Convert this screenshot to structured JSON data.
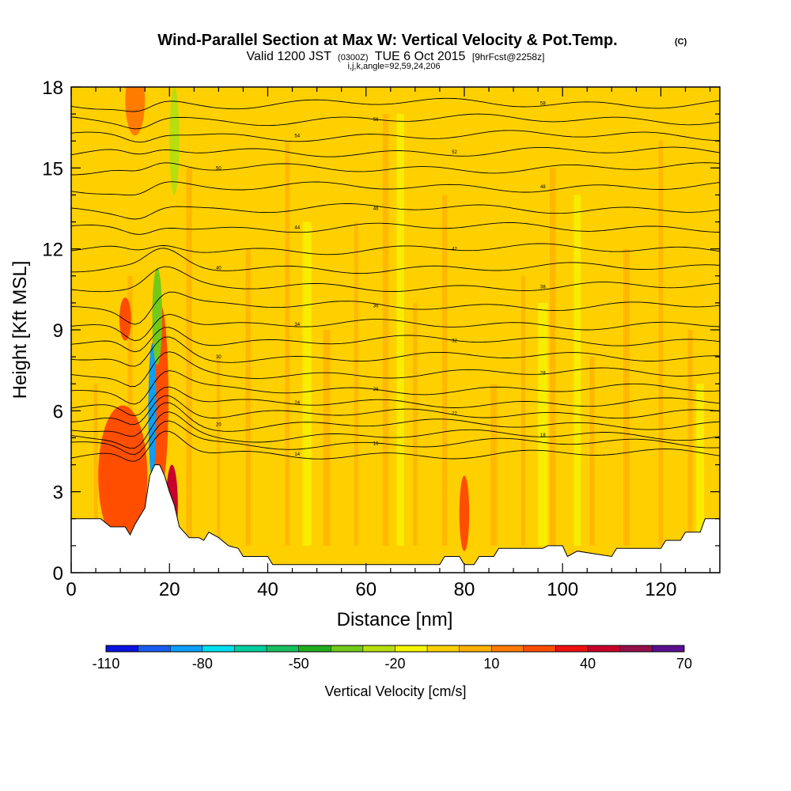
{
  "header": {
    "title": "Wind-Parallel Section at Max W: Vertical Velocity & Pot.Temp.",
    "title_mark": "(C)",
    "valid_prefix": "Valid 1200 JST",
    "valid_utc": "(0300Z)",
    "valid_date": "TUE 6 Oct 2015",
    "forecast_tag": "[9hrFcst@2258z]",
    "indices": "i,j,k,angle=92,59,24,206"
  },
  "chart_data": {
    "type": "heatmap",
    "xlabel": "Distance [nm]",
    "ylabel": "Height [Kft MSL]",
    "xlim": [
      0,
      132
    ],
    "ylim": [
      0,
      18
    ],
    "x_ticks": [
      0,
      20,
      40,
      60,
      80,
      100,
      120
    ],
    "y_ticks": [
      0,
      3,
      6,
      9,
      12,
      15,
      18
    ],
    "x_tick_labels": [
      "0",
      "20",
      "40",
      "60",
      "80",
      "100",
      "120"
    ],
    "y_tick_labels": [
      "0",
      "3",
      "6",
      "9",
      "12",
      "15",
      "18"
    ],
    "grid": false,
    "colorbar": {
      "title": "Vertical Velocity [cm/s]",
      "placement": "bottom",
      "levels": [
        -110,
        -100,
        -90,
        -80,
        -70,
        -60,
        -50,
        -40,
        -30,
        -20,
        -10,
        0,
        10,
        20,
        30,
        40,
        50,
        60,
        70
      ],
      "colors": [
        "#0a13e0",
        "#1a5cf0",
        "#0d9ef7",
        "#00e0f0",
        "#00d0a0",
        "#18c060",
        "#22ad1e",
        "#73c91a",
        "#b8de10",
        "#f5f500",
        "#ffd000",
        "#ffb000",
        "#ff7c00",
        "#ff4e00",
        "#f01010",
        "#c8002a",
        "#96104a",
        "#5a1090"
      ],
      "tick_values": [
        "-110",
        "-80",
        "-50",
        "-20",
        "10",
        "40",
        "70"
      ]
    },
    "terrain_kft": [
      [
        0,
        2.0
      ],
      [
        3,
        2.0
      ],
      [
        6,
        2.0
      ],
      [
        8,
        1.7
      ],
      [
        11,
        1.7
      ],
      [
        12,
        1.4
      ],
      [
        13,
        1.8
      ],
      [
        15,
        2.4
      ],
      [
        16,
        3.6
      ],
      [
        17,
        4.0
      ],
      [
        18,
        4.0
      ],
      [
        19,
        3.6
      ],
      [
        20,
        3.0
      ],
      [
        21,
        2.5
      ],
      [
        22,
        1.7
      ],
      [
        23,
        1.5
      ],
      [
        24,
        1.3
      ],
      [
        26,
        1.3
      ],
      [
        27,
        1.2
      ],
      [
        28,
        1.5
      ],
      [
        30,
        1.3
      ],
      [
        32,
        1.0
      ],
      [
        34,
        0.9
      ],
      [
        35,
        0.6
      ],
      [
        40,
        0.6
      ],
      [
        41,
        0.3
      ],
      [
        61,
        0.3
      ],
      [
        62,
        0.3
      ],
      [
        75,
        0.3
      ],
      [
        76,
        0.6
      ],
      [
        79,
        0.6
      ],
      [
        80,
        0.3
      ],
      [
        82,
        0.3
      ],
      [
        83,
        0.6
      ],
      [
        86,
        0.6
      ],
      [
        87,
        0.9
      ],
      [
        96,
        0.9
      ],
      [
        97,
        1.0
      ],
      [
        100,
        1.0
      ],
      [
        101,
        0.6
      ],
      [
        103,
        0.8
      ],
      [
        110,
        0.6
      ],
      [
        111,
        0.9
      ],
      [
        120,
        0.9
      ],
      [
        121,
        1.2
      ],
      [
        124,
        1.2
      ],
      [
        125,
        1.5
      ],
      [
        128,
        1.5
      ],
      [
        129,
        2.0
      ],
      [
        132,
        2.0
      ]
    ],
    "theta_levels": [
      {
        "label": "14",
        "y_kft": 4.4
      },
      {
        "label": "16",
        "y_kft": 4.8
      },
      {
        "label": "18",
        "y_kft": 5.1
      },
      {
        "label": "20",
        "y_kft": 5.5
      },
      {
        "label": "22",
        "y_kft": 5.9
      },
      {
        "label": "24",
        "y_kft": 6.3
      },
      {
        "label": "26",
        "y_kft": 6.8
      },
      {
        "label": "28",
        "y_kft": 7.4
      },
      {
        "label": "30",
        "y_kft": 8.0
      },
      {
        "label": "32",
        "y_kft": 8.6
      },
      {
        "label": "34",
        "y_kft": 9.2
      },
      {
        "label": "36",
        "y_kft": 9.9
      },
      {
        "label": "38",
        "y_kft": 10.6
      },
      {
        "label": "40",
        "y_kft": 11.3
      },
      {
        "label": "42",
        "y_kft": 12.0
      },
      {
        "label": "44",
        "y_kft": 12.8
      },
      {
        "label": "46",
        "y_kft": 13.5
      },
      {
        "label": "48",
        "y_kft": 14.3
      },
      {
        "label": "50",
        "y_kft": 15.0
      },
      {
        "label": "52",
        "y_kft": 15.6
      },
      {
        "label": "54",
        "y_kft": 16.2
      },
      {
        "label": "56",
        "y_kft": 16.8
      },
      {
        "label": "58",
        "y_kft": 17.4
      }
    ],
    "w_features": [
      {
        "x": 10,
        "y": 3.2,
        "rx": 2.2,
        "ry": 1.0,
        "w": 65
      },
      {
        "x": 10,
        "y": 3.4,
        "rx": 3.5,
        "ry": 1.7,
        "w": 45
      },
      {
        "x": 10.5,
        "y": 3.6,
        "rx": 5.0,
        "ry": 2.6,
        "w": 25
      },
      {
        "x": 17.5,
        "y": 7.5,
        "rx": 1.0,
        "ry": 2.5,
        "w": 55
      },
      {
        "x": 18,
        "y": 6.5,
        "rx": 1.8,
        "ry": 3.5,
        "w": 25
      },
      {
        "x": 16.5,
        "y": 6.0,
        "rx": 0.8,
        "ry": 2.5,
        "w": -90
      },
      {
        "x": 17.5,
        "y": 9.5,
        "rx": 1.0,
        "ry": 1.8,
        "w": -40
      },
      {
        "x": 20.5,
        "y": 2.5,
        "rx": 1.2,
        "ry": 1.5,
        "w": 45
      },
      {
        "x": 21,
        "y": 16.0,
        "rx": 1.0,
        "ry": 2.0,
        "w": -25
      },
      {
        "x": 13,
        "y": 17.5,
        "rx": 2.0,
        "ry": 1.3,
        "w": 15
      },
      {
        "x": 80,
        "y": 2.2,
        "rx": 1.0,
        "ry": 1.4,
        "w": 25
      },
      {
        "x": 11,
        "y": 9.4,
        "rx": 1.2,
        "ry": 0.8,
        "w": 20
      }
    ]
  }
}
